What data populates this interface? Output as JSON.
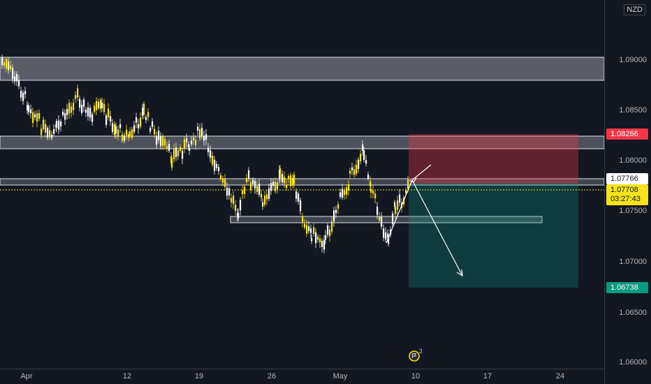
{
  "price_scale": {
    "currency": "NZD",
    "ticks": [
      "1.09000",
      "1.08500",
      "1.08000",
      "1.07500",
      "1.07000",
      "1.06500",
      "1.06000"
    ],
    "labels": {
      "stop_loss": "1.08266",
      "level": "1.07766",
      "current_price": "1.07708",
      "countdown": "03:27:43",
      "take_profit": "1.06738"
    }
  },
  "time_scale": {
    "ticks": [
      "Apr",
      "12",
      "19",
      "26",
      "May",
      "10",
      "17",
      "24"
    ]
  },
  "events_badge": {
    "count": "3",
    "icon": "flag-icon"
  },
  "colors": {
    "background": "#131722",
    "candle": "#f6e31b",
    "candle_down": "#ffffff",
    "zone": "#9598a1",
    "stop_loss": "#f23645",
    "take_profit": "#089981",
    "current_price": "#f6e31b"
  }
}
